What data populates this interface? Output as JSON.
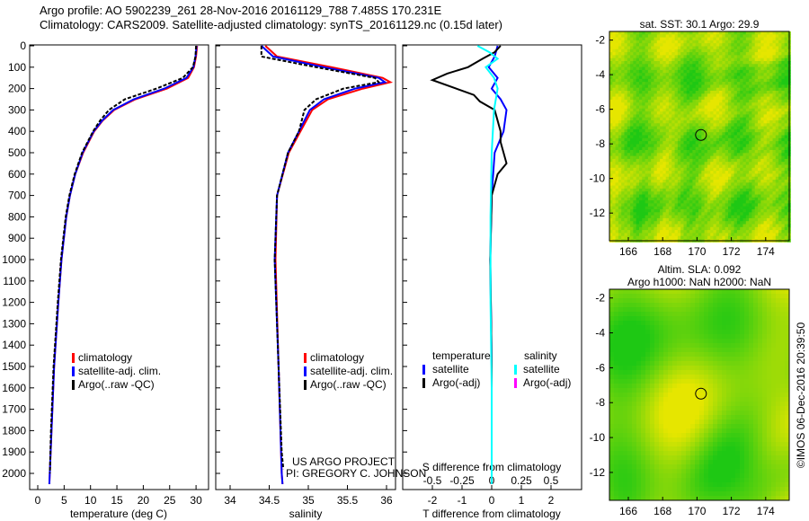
{
  "header": {
    "line1": "Argo profile: AO 5902239_261 28-Nov-2016 20161129_788 7.485S 170.231E",
    "line2": "Climatology: CARS2009. Satellite-adjusted climatology: synTS_20161129.nc (0.15d later)"
  },
  "colors": {
    "climatology": "#ff0000",
    "satellite": "#0000ff",
    "argo": "#000000",
    "sal_satellite": "#00ffff",
    "sal_argo": "#ff00ff"
  },
  "chart_data": [
    {
      "type": "line",
      "name": "temperature",
      "xlabel": "temperature (deg C)",
      "xlim": [
        -2,
        32
      ],
      "ylim": [
        2050,
        0
      ],
      "xticks": [
        0,
        5,
        10,
        15,
        20,
        25,
        30
      ],
      "yticks": [
        0,
        100,
        200,
        300,
        400,
        500,
        600,
        700,
        800,
        900,
        1000,
        1100,
        1200,
        1300,
        1400,
        1500,
        1600,
        1700,
        1800,
        1900,
        2000
      ],
      "legend": [
        "climatology",
        "satellite-adj. clim.",
        "Argo(..raw -QC)"
      ],
      "series": [
        {
          "name": "climatology",
          "color": "#ff0000",
          "depth": [
            0,
            50,
            100,
            150,
            200,
            250,
            300,
            350,
            400,
            500,
            600,
            700,
            800,
            1000,
            1200,
            1500,
            1800,
            2050
          ],
          "values": [
            30.2,
            30,
            29.6,
            28.5,
            24.5,
            18.5,
            14.5,
            12.3,
            10.7,
            8.6,
            7.1,
            6.1,
            5.4,
            4.5,
            3.9,
            3.1,
            2.6,
            2.2
          ]
        },
        {
          "name": "satellite-adj. clim.",
          "color": "#0000ff",
          "depth": [
            0,
            50,
            100,
            150,
            200,
            250,
            300,
            350,
            400,
            500,
            600,
            700,
            800,
            1000,
            1200,
            1500,
            1800,
            2050
          ],
          "values": [
            30.1,
            29.9,
            29.5,
            28.2,
            24,
            18.2,
            14.3,
            12.2,
            10.6,
            8.5,
            7.1,
            6.1,
            5.4,
            4.5,
            3.9,
            3.1,
            2.6,
            2.2
          ]
        },
        {
          "name": "Argo(..raw -QC)",
          "color": "#000000",
          "depth": [
            0,
            50,
            100,
            150,
            200,
            250,
            300,
            350,
            400,
            500,
            600,
            700,
            800,
            1000,
            1200,
            1500,
            1800,
            2000
          ],
          "values": [
            30,
            29.9,
            29.4,
            27.5,
            22.5,
            16.5,
            13.5,
            11.8,
            10.5,
            8.4,
            7,
            6,
            5.3,
            4.4,
            3.8,
            3,
            2.5,
            2.3
          ]
        }
      ]
    },
    {
      "type": "line",
      "name": "salinity",
      "xlabel": "salinity",
      "xlim": [
        33.8,
        36.2
      ],
      "ylim": [
        2050,
        0
      ],
      "xticks": [
        34,
        34.5,
        35,
        35.5,
        36
      ],
      "legend": [
        "climatology",
        "satellite-adj. clim.",
        "Argo(..raw -QC)"
      ],
      "annotations": [
        "US ARGO PROJECT",
        "PI: GREGORY C. JOHNSON"
      ],
      "series": [
        {
          "name": "climatology",
          "color": "#ff0000",
          "depth": [
            0,
            50,
            100,
            150,
            170,
            200,
            250,
            300,
            400,
            500,
            700,
            1000,
            1500,
            2000,
            2050
          ],
          "values": [
            34.45,
            34.6,
            35.3,
            35.95,
            36.05,
            35.7,
            35.25,
            35.05,
            34.9,
            34.75,
            34.6,
            34.58,
            34.62,
            34.66,
            34.67
          ]
        },
        {
          "name": "satellite-adj. clim.",
          "color": "#0000ff",
          "depth": [
            0,
            50,
            100,
            150,
            170,
            200,
            250,
            300,
            400,
            500,
            700,
            1000,
            1500,
            2000,
            2050
          ],
          "values": [
            34.4,
            34.55,
            35.2,
            35.9,
            35.98,
            35.6,
            35.2,
            35.02,
            34.88,
            34.74,
            34.6,
            34.57,
            34.62,
            34.66,
            34.67
          ]
        },
        {
          "name": "Argo(..raw -QC)",
          "color": "#000000",
          "depth": [
            0,
            50,
            100,
            150,
            170,
            200,
            250,
            300,
            400,
            500,
            700,
            1000,
            1500,
            1900,
            1980
          ],
          "values": [
            34.4,
            34.4,
            35.1,
            35.85,
            35.9,
            35.45,
            35.1,
            34.95,
            34.88,
            34.74,
            34.6,
            34.57,
            34.62,
            34.66,
            34.68
          ]
        }
      ]
    },
    {
      "type": "line",
      "name": "differences",
      "xlabel": "T difference from climatology",
      "x2label": "S difference from climatology",
      "xlim": [
        -3,
        3
      ],
      "x2lim": [
        -0.75,
        0.75
      ],
      "xticks": [
        -2,
        -1,
        0,
        1,
        2
      ],
      "x2ticks": [
        -0.5,
        -0.25,
        0,
        0.25,
        0.5
      ],
      "ylim": [
        2050,
        0
      ],
      "legend_headers": [
        "temperature",
        "salinity"
      ],
      "legend_t": [
        "satellite",
        "Argo(-adj)"
      ],
      "legend_s": [
        "satellite",
        "Argo(-adj)"
      ],
      "series": [
        {
          "name": "T satellite",
          "axis": "T",
          "color": "#0000ff",
          "depth": [
            0,
            50,
            100,
            150,
            200,
            250,
            300,
            400,
            500,
            700,
            1000,
            1500,
            2000,
            2050
          ],
          "values": [
            0.2,
            0.1,
            -0.1,
            0.2,
            0,
            0.3,
            0.5,
            0.4,
            0.1,
            0,
            -0.05,
            0,
            0,
            0
          ]
        },
        {
          "name": "T Argo(-adj)",
          "axis": "T",
          "color": "#000000",
          "depth": [
            0,
            30,
            60,
            100,
            130,
            160,
            200,
            230,
            260,
            300,
            350,
            400,
            450,
            500,
            550,
            600,
            700,
            1000,
            1500,
            2000
          ],
          "values": [
            0.3,
            0.1,
            -0.3,
            -0.8,
            -1.5,
            -2,
            -1.2,
            -0.6,
            -0.4,
            0.1,
            0.2,
            0.3,
            0.3,
            0.4,
            0.5,
            0.2,
            0,
            -0.05,
            0,
            0
          ]
        },
        {
          "name": "S satellite",
          "axis": "S",
          "color": "#00ffff",
          "depth": [
            0,
            30,
            60,
            100,
            150,
            200,
            300,
            500,
            800,
            1200,
            1600,
            2050
          ],
          "values": [
            -0.12,
            -0.02,
            0.05,
            -0.05,
            0.02,
            0.05,
            0.02,
            0.0,
            -0.01,
            -0.01,
            0,
            0
          ]
        },
        {
          "name": "S Argo(-adj)",
          "axis": "S",
          "color": "#ff00ff",
          "depth": [],
          "values": []
        }
      ]
    }
  ],
  "maps": [
    {
      "title": "sat. SST: 30.1  Argo: 29.9",
      "xticks": [
        166,
        168,
        170,
        172,
        174
      ],
      "yticks": [
        -2,
        -4,
        -6,
        -8,
        -10,
        -12
      ],
      "lon": 170.231,
      "lat": -7.485
    },
    {
      "title": "Altim. SLA: 0.092",
      "subtitle": "Argo h1000: NaN h2000: NaN",
      "xticks": [
        166,
        168,
        170,
        172,
        174
      ],
      "yticks": [
        -2,
        -4,
        -6,
        -8,
        -10,
        -12
      ],
      "lon": 170.231,
      "lat": -7.485
    }
  ],
  "credit": "©IMOS 06-Dec-2016 20:39:50"
}
